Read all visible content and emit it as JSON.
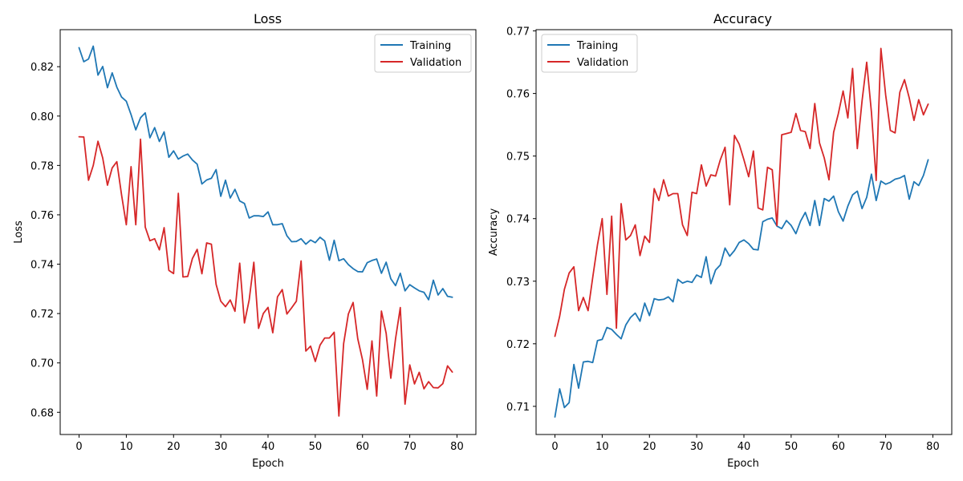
{
  "chart_data": [
    {
      "type": "line",
      "title": "Loss",
      "xlabel": "Epoch",
      "ylabel": "Loss",
      "xlim": [
        -4,
        84
      ],
      "ylim": [
        0.671,
        0.835
      ],
      "xticks": [
        0,
        10,
        20,
        30,
        40,
        50,
        60,
        70,
        80
      ],
      "xtick_labels": [
        "0",
        "10",
        "20",
        "30",
        "40",
        "50",
        "60",
        "70",
        "80"
      ],
      "yticks": [
        0.68,
        0.7,
        0.72,
        0.74,
        0.76,
        0.78,
        0.8,
        0.82
      ],
      "ytick_labels": [
        "0.68",
        "0.70",
        "0.72",
        "0.74",
        "0.76",
        "0.78",
        "0.80",
        "0.82"
      ],
      "legend": "top-right",
      "grid": false,
      "x": [
        0,
        1,
        2,
        3,
        4,
        5,
        6,
        7,
        8,
        9,
        10,
        11,
        12,
        13,
        14,
        15,
        16,
        17,
        18,
        19,
        20,
        21,
        22,
        23,
        24,
        25,
        26,
        27,
        28,
        29,
        30,
        31,
        32,
        33,
        34,
        35,
        36,
        37,
        38,
        39,
        40,
        41,
        42,
        43,
        44,
        45,
        46,
        47,
        48,
        49,
        50,
        51,
        52,
        53,
        54,
        55,
        56,
        57,
        58,
        59,
        60,
        61,
        62,
        63,
        64,
        65,
        66,
        67,
        68,
        69,
        70,
        71,
        72,
        73,
        74,
        75,
        76,
        77,
        78,
        79
      ],
      "series": [
        {
          "name": "Training",
          "color": "#1f77b4",
          "values": [
            0.8277,
            0.822,
            0.8231,
            0.8283,
            0.8166,
            0.8201,
            0.8115,
            0.8175,
            0.8117,
            0.8077,
            0.806,
            0.8006,
            0.7944,
            0.7993,
            0.8013,
            0.7912,
            0.7953,
            0.7897,
            0.7936,
            0.7833,
            0.7859,
            0.7826,
            0.7838,
            0.7846,
            0.7822,
            0.7805,
            0.7725,
            0.7741,
            0.7748,
            0.7783,
            0.7675,
            0.774,
            0.7668,
            0.7703,
            0.7656,
            0.7646,
            0.7587,
            0.7596,
            0.7596,
            0.7593,
            0.7612,
            0.756,
            0.756,
            0.7564,
            0.7515,
            0.7491,
            0.7492,
            0.7503,
            0.7481,
            0.7498,
            0.7487,
            0.7509,
            0.7494,
            0.7416,
            0.7497,
            0.7414,
            0.7422,
            0.7398,
            0.7382,
            0.737,
            0.7369,
            0.7406,
            0.7415,
            0.7421,
            0.7363,
            0.7408,
            0.7341,
            0.7313,
            0.7363,
            0.7292,
            0.7317,
            0.7304,
            0.7292,
            0.7286,
            0.7256,
            0.7335,
            0.7275,
            0.7301,
            0.727,
            0.7266
          ]
        },
        {
          "name": "Validation",
          "color": "#d62728",
          "values": [
            0.7916,
            0.7915,
            0.774,
            0.78,
            0.7898,
            0.783,
            0.772,
            0.779,
            0.7815,
            0.768,
            0.756,
            0.7795,
            0.756,
            0.7906,
            0.755,
            0.7495,
            0.7503,
            0.7458,
            0.7548,
            0.7375,
            0.7362,
            0.7687,
            0.7348,
            0.735,
            0.7423,
            0.746,
            0.7361,
            0.7486,
            0.7481,
            0.7318,
            0.725,
            0.7228,
            0.7255,
            0.7209,
            0.7404,
            0.7162,
            0.7255,
            0.7408,
            0.714,
            0.72,
            0.7225,
            0.7122,
            0.7268,
            0.7297,
            0.7198,
            0.7223,
            0.725,
            0.7413,
            0.7048,
            0.7068,
            0.7006,
            0.7072,
            0.7101,
            0.7101,
            0.7124,
            0.6785,
            0.7078,
            0.7198,
            0.7245,
            0.7098,
            0.7013,
            0.6893,
            0.7089,
            0.6866,
            0.721,
            0.712,
            0.6938,
            0.7098,
            0.7224,
            0.6833,
            0.6992,
            0.6915,
            0.6962,
            0.6895,
            0.6924,
            0.69,
            0.6899,
            0.6916,
            0.6988,
            0.6963
          ]
        }
      ]
    },
    {
      "type": "line",
      "title": "Accuracy",
      "xlabel": "Epoch",
      "ylabel": "Accuracy",
      "xlim": [
        -4,
        84
      ],
      "ylim": [
        0.7055,
        0.7702
      ],
      "xticks": [
        0,
        10,
        20,
        30,
        40,
        50,
        60,
        70,
        80
      ],
      "xtick_labels": [
        "0",
        "10",
        "20",
        "30",
        "40",
        "50",
        "60",
        "70",
        "80"
      ],
      "yticks": [
        0.71,
        0.72,
        0.73,
        0.74,
        0.75,
        0.76,
        0.77
      ],
      "ytick_labels": [
        "0.71",
        "0.72",
        "0.73",
        "0.74",
        "0.75",
        "0.76",
        "0.77"
      ],
      "legend": "top-left",
      "grid": false,
      "x": [
        0,
        1,
        2,
        3,
        4,
        5,
        6,
        7,
        8,
        9,
        10,
        11,
        12,
        13,
        14,
        15,
        16,
        17,
        18,
        19,
        20,
        21,
        22,
        23,
        24,
        25,
        26,
        27,
        28,
        29,
        30,
        31,
        32,
        33,
        34,
        35,
        36,
        37,
        38,
        39,
        40,
        41,
        42,
        43,
        44,
        45,
        46,
        47,
        48,
        49,
        50,
        51,
        52,
        53,
        54,
        55,
        56,
        57,
        58,
        59,
        60,
        61,
        62,
        63,
        64,
        65,
        66,
        67,
        68,
        69,
        70,
        71,
        72,
        73,
        74,
        75,
        76,
        77,
        78,
        79
      ],
      "series": [
        {
          "name": "Training",
          "color": "#1f77b4",
          "values": [
            0.7083,
            0.7128,
            0.7098,
            0.7106,
            0.7167,
            0.7129,
            0.7171,
            0.7172,
            0.717,
            0.7205,
            0.7207,
            0.7226,
            0.7223,
            0.7215,
            0.7208,
            0.723,
            0.7242,
            0.7249,
            0.7236,
            0.7265,
            0.7245,
            0.7272,
            0.727,
            0.7271,
            0.7275,
            0.7267,
            0.7303,
            0.7297,
            0.73,
            0.7298,
            0.731,
            0.7306,
            0.7339,
            0.7296,
            0.7318,
            0.7326,
            0.7353,
            0.734,
            0.7349,
            0.7362,
            0.7366,
            0.736,
            0.7351,
            0.735,
            0.7395,
            0.7399,
            0.7401,
            0.7388,
            0.7384,
            0.7397,
            0.7389,
            0.7376,
            0.7396,
            0.741,
            0.7389,
            0.7429,
            0.7389,
            0.7432,
            0.7428,
            0.7436,
            0.7411,
            0.7396,
            0.742,
            0.7438,
            0.7444,
            0.7416,
            0.7434,
            0.7471,
            0.7429,
            0.746,
            0.7455,
            0.7458,
            0.7463,
            0.7465,
            0.7469,
            0.7431,
            0.7459,
            0.7453,
            0.7469,
            0.7494
          ]
        },
        {
          "name": "Validation",
          "color": "#d62728",
          "values": [
            0.7212,
            0.7244,
            0.7287,
            0.7313,
            0.7323,
            0.7253,
            0.7274,
            0.7253,
            0.7306,
            0.7358,
            0.74,
            0.7279,
            0.7404,
            0.7225,
            0.7424,
            0.7366,
            0.7373,
            0.739,
            0.7341,
            0.7372,
            0.7362,
            0.7448,
            0.7429,
            0.7462,
            0.7436,
            0.744,
            0.744,
            0.739,
            0.7373,
            0.7442,
            0.744,
            0.7486,
            0.7452,
            0.747,
            0.7468,
            0.7494,
            0.7514,
            0.7422,
            0.7533,
            0.7519,
            0.7494,
            0.7467,
            0.7508,
            0.7417,
            0.7414,
            0.7482,
            0.7478,
            0.7389,
            0.7534,
            0.7536,
            0.7538,
            0.7568,
            0.7541,
            0.7539,
            0.7512,
            0.7584,
            0.7521,
            0.7497,
            0.7462,
            0.7538,
            0.7568,
            0.7604,
            0.7561,
            0.764,
            0.7512,
            0.7588,
            0.765,
            0.757,
            0.7461,
            0.7672,
            0.7598,
            0.7541,
            0.7537,
            0.7602,
            0.7622,
            0.7593,
            0.7557,
            0.759,
            0.7566,
            0.7583
          ]
        }
      ]
    }
  ]
}
